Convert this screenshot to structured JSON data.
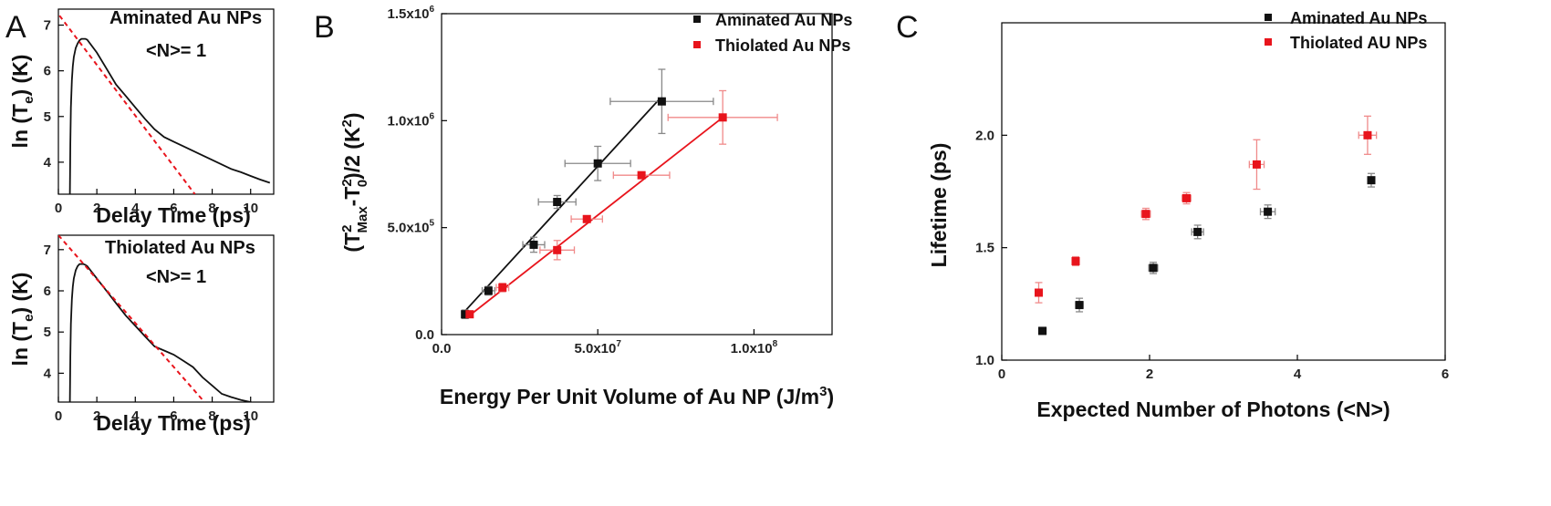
{
  "panels": {
    "A_top": {
      "panel_label": "A",
      "annotation_line1": "Aminated Au NPs",
      "annotation_line2": "<N>= 1",
      "ylabel": "ln (T_e) (K)",
      "xlabel": "Delay Time (ps)"
    },
    "A_bottom": {
      "annotation_line1": "Thiolated Au NPs",
      "annotation_line2": "<N>= 1",
      "ylabel": "ln (T_e) (K)",
      "xlabel": "Delay Time (ps)"
    },
    "B": {
      "panel_label": "B",
      "xlabel": "Energy Per Unit Volume of Au NP (J/m^3)",
      "ylabel": "(T^2_Max-T^2_0)/2 (K^2)",
      "legend": [
        "Aminated Au NPs",
        "Thiolated Au NPs"
      ]
    },
    "C": {
      "panel_label": "C",
      "xlabel": "Expected Number of Photons (<N>)",
      "ylabel": "Lifetime (ps)",
      "legend": [
        "Aminated Au NPs",
        "Thiolated AU NPs"
      ]
    }
  },
  "colors": {
    "aminated": "#111111",
    "thiolated": "#e8141c",
    "fit_dashed": "#e8141c",
    "error_bar": "#888888"
  },
  "chart_data": [
    {
      "id": "A_top",
      "type": "line",
      "xlabel": "Delay Time (ps)",
      "ylabel": "ln (T_e) (K)",
      "xlim": [
        0,
        11.2
      ],
      "ylim": [
        3.3,
        7.35
      ],
      "xticks": [
        0,
        2,
        4,
        6,
        8,
        10
      ],
      "yticks": [
        4,
        5,
        6,
        7
      ],
      "series": [
        {
          "style": "solid",
          "x": [
            0.6,
            0.62,
            0.65,
            0.7,
            0.75,
            0.8,
            0.9,
            1.0,
            1.1,
            1.2,
            1.3,
            1.4,
            1.5,
            2.0,
            2.5,
            3.0,
            3.5,
            4.0,
            4.5,
            5.0,
            5.5,
            6.0,
            6.5,
            7.0,
            7.5,
            8.0,
            8.5,
            9.0,
            9.5,
            10.0,
            10.5,
            11.0
          ],
          "y": [
            3.3,
            4.4,
            5.2,
            5.8,
            6.1,
            6.3,
            6.5,
            6.6,
            6.67,
            6.7,
            6.7,
            6.7,
            6.68,
            6.4,
            6.05,
            5.7,
            5.45,
            5.2,
            4.95,
            4.72,
            4.55,
            4.45,
            4.35,
            4.25,
            4.15,
            4.05,
            3.95,
            3.85,
            3.78,
            3.7,
            3.62,
            3.55
          ]
        },
        {
          "style": "dashed",
          "x": [
            -0.2,
            7.1
          ],
          "y": [
            7.35,
            3.3
          ]
        }
      ],
      "annotations": [
        "Aminated Au NPs",
        "<N>= 1"
      ]
    },
    {
      "id": "A_bottom",
      "type": "line",
      "xlabel": "Delay Time (ps)",
      "ylabel": "ln (T_e) (K)",
      "xlim": [
        0,
        11.2
      ],
      "ylim": [
        3.3,
        7.35
      ],
      "xticks": [
        0,
        2,
        4,
        6,
        8,
        10
      ],
      "yticks": [
        4,
        5,
        6,
        7
      ],
      "series": [
        {
          "style": "solid",
          "x": [
            0.6,
            0.62,
            0.65,
            0.7,
            0.75,
            0.8,
            0.9,
            1.0,
            1.1,
            1.2,
            1.3,
            1.4,
            1.5,
            2.0,
            2.5,
            3.0,
            3.5,
            4.0,
            4.5,
            5.0,
            5.5,
            6.0,
            6.5,
            7.0,
            7.5,
            8.0,
            8.5,
            9.0,
            9.5,
            10.0,
            10.4
          ],
          "y": [
            3.3,
            4.4,
            5.2,
            5.8,
            6.1,
            6.3,
            6.5,
            6.6,
            6.65,
            6.65,
            6.65,
            6.63,
            6.6,
            6.3,
            6.0,
            5.7,
            5.4,
            5.15,
            4.9,
            4.65,
            4.55,
            4.45,
            4.3,
            4.15,
            3.9,
            3.7,
            3.5,
            3.42,
            3.35,
            3.3,
            3.25
          ]
        },
        {
          "style": "dashed",
          "x": [
            0.0,
            7.6
          ],
          "y": [
            7.35,
            3.3
          ]
        }
      ],
      "annotations": [
        "Thiolated Au NPs",
        "<N>= 1"
      ]
    },
    {
      "id": "B",
      "type": "scatter",
      "xlabel": "Energy Per Unit Volume of Au NP (J/m^3)",
      "ylabel": "(T^2_Max-T^2_0)/2 (K^2)",
      "xlim": [
        0,
        125000000.0
      ],
      "ylim": [
        0,
        1500000.0
      ],
      "xticks": [
        0,
        50000000.0,
        100000000.0
      ],
      "xticklabels": [
        "0.0",
        "5.0x10^7",
        "1.0x10^8"
      ],
      "yticks": [
        0,
        500000.0,
        1000000.0,
        1500000.0
      ],
      "yticklabels": [
        "0.0",
        "5.0x10^5",
        "1.0x10^6",
        "1.5x10^6"
      ],
      "series": [
        {
          "name": "Aminated Au NPs",
          "color": "#111111",
          "x": [
            7500000.0,
            15000000.0,
            29500000.0,
            37000000.0,
            50000000.0,
            70500000.0
          ],
          "y": [
            95000.0,
            205000.0,
            420000.0,
            620000.0,
            800000.0,
            1090000.0
          ],
          "xerr": [
            1000000.0,
            2000000.0,
            3500000.0,
            6000000.0,
            10500000.0,
            16500000.0
          ],
          "yerr": [
            20000.0,
            20000.0,
            35000.0,
            30000.0,
            80000.0,
            150000.0
          ],
          "fit": {
            "x": [
              7500000.0,
              70000000.0
            ],
            "y": [
              110000.0,
              1105000.0
            ]
          }
        },
        {
          "name": "Thiolated Au NPs",
          "color": "#e8141c",
          "x": [
            9000000.0,
            19500000.0,
            37000000.0,
            46500000.0,
            64000000.0,
            90000000.0
          ],
          "y": [
            95000.0,
            220000.0,
            395000.0,
            540000.0,
            745000.0,
            1015000.0
          ],
          "xerr": [
            1000000.0,
            2000000.0,
            5500000.0,
            5000000.0,
            9000000.0,
            17500000.0
          ],
          "yerr": [
            15000.0,
            20000.0,
            45000.0,
            15000.0,
            15000.0,
            125000.0
          ],
          "fit": {
            "x": [
              9000000.0,
              90000000.0
            ],
            "y": [
              90000.0,
              1015000.0
            ]
          }
        }
      ],
      "legend_position": "top-right"
    },
    {
      "id": "C",
      "type": "scatter",
      "xlabel": "Expected Number of Photons (<N>)",
      "ylabel": "Lifetime (ps)",
      "xlim": [
        0,
        6
      ],
      "ylim": [
        1.0,
        2.5
      ],
      "xticks": [
        0,
        2,
        4,
        6
      ],
      "yticks": [
        1.0,
        1.5,
        2.0
      ],
      "series": [
        {
          "name": "Aminated Au NPs",
          "color": "#111111",
          "x": [
            0.55,
            1.05,
            2.05,
            2.65,
            3.6,
            5.0
          ],
          "y": [
            1.13,
            1.245,
            1.41,
            1.57,
            1.66,
            1.8
          ],
          "xerr": [
            0.05,
            0.05,
            0.06,
            0.08,
            0.1,
            0.0
          ],
          "yerr": [
            0.015,
            0.03,
            0.025,
            0.03,
            0.03,
            0.03
          ]
        },
        {
          "name": "Thiolated AU NPs",
          "color": "#e8141c",
          "x": [
            0.5,
            1.0,
            1.95,
            2.5,
            3.45,
            4.95
          ],
          "y": [
            1.3,
            1.44,
            1.65,
            1.72,
            1.87,
            2.0
          ],
          "xerr": [
            0.03,
            0.03,
            0.06,
            0.06,
            0.1,
            0.12
          ],
          "yerr": [
            0.045,
            0.02,
            0.025,
            0.025,
            0.11,
            0.085
          ]
        }
      ],
      "legend_position": "top-right"
    }
  ]
}
